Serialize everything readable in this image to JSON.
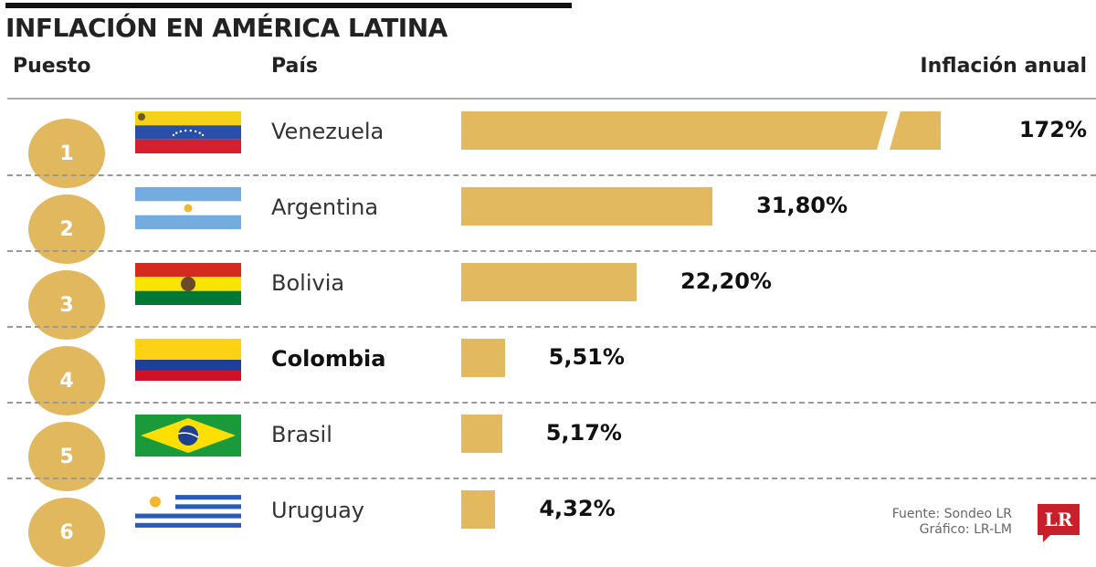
{
  "title": "INFLACIÓN EN AMÉRICA LATINA",
  "headers": {
    "rank": "Puesto",
    "country": "País",
    "value": "Inflación anual"
  },
  "source": "Fuente: Sondeo LR",
  "graphic": "Gráfico: LR-LM",
  "logo": "LR",
  "colors": {
    "bar": "#e3b95f",
    "circle": "#e2b85e",
    "logo": "#c8202a"
  },
  "chart_data": {
    "type": "bar",
    "orientation": "horizontal",
    "title": "INFLACIÓN EN AMÉRICA LATINA",
    "categories": [
      "Venezuela",
      "Argentina",
      "Bolivia",
      "Colombia",
      "Brasil",
      "Uruguay"
    ],
    "ranks": [
      "1",
      "2",
      "3",
      "4",
      "5",
      "6"
    ],
    "values": [
      172,
      31.8,
      22.2,
      5.51,
      5.17,
      4.32
    ],
    "labels": [
      "172%",
      "31,80%",
      "22,20%",
      "5,51%",
      "5,17%",
      "4,32%"
    ],
    "highlight": "Colombia",
    "broken_bar": "Venezuela",
    "unit": "%"
  }
}
